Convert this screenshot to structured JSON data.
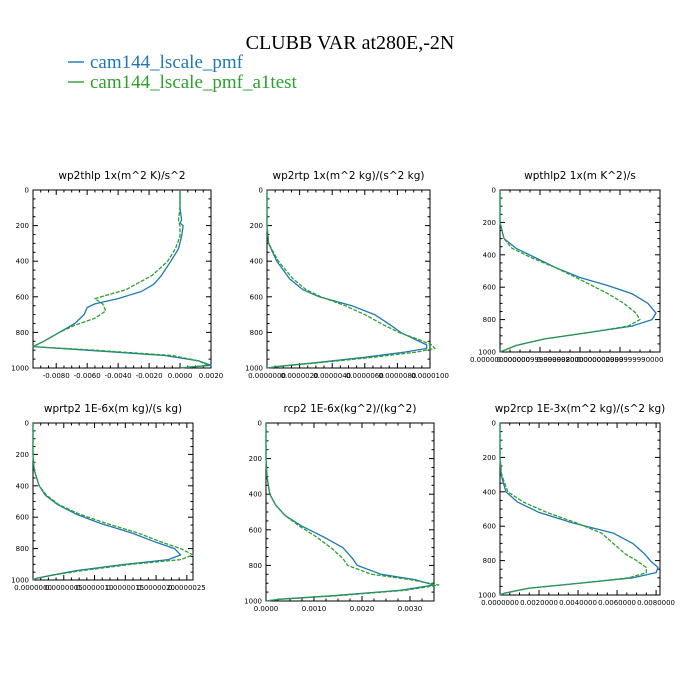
{
  "figure": {
    "title": "CLUBB VAR at280E,-2N",
    "legend": [
      {
        "label": "cam144_lscale_pmf",
        "color": "#1f77b4",
        "dashed": false
      },
      {
        "label": "cam144_lscale_pmf_a1test",
        "color": "#2ca02c",
        "dashed": true
      }
    ]
  },
  "chart_data": [
    {
      "type": "line",
      "title": "wp2thlp  1x(m^2 K)/s^2",
      "xlim": [
        -0.0095,
        0.002
      ],
      "ylim": [
        1000,
        0
      ],
      "xticks": [
        -0.008,
        -0.006,
        -0.004,
        -0.002,
        0.0,
        0.002
      ],
      "xtick_labels": [
        "-0.0080",
        "-0.0060",
        "-0.0040",
        "-0.0020",
        "0.0000",
        "0.0020"
      ],
      "yticks": [
        0,
        200,
        400,
        600,
        800,
        1000
      ],
      "ytick_labels": [
        "0",
        "200",
        "400",
        "600",
        "800",
        "1000"
      ],
      "series": [
        {
          "name": "cam144_lscale_pmf",
          "y": [
            0,
            100,
            170,
            185,
            200,
            260,
            330,
            400,
            480,
            530,
            570,
            610,
            640,
            660,
            700,
            750,
            800,
            850,
            880,
            900,
            930,
            960,
            985,
            1000
          ],
          "x": [
            0.0,
            0.0,
            0.0001,
            0.0,
            0.0002,
            0.0001,
            -0.0001,
            -0.0006,
            -0.0012,
            -0.0017,
            -0.0025,
            -0.004,
            -0.0055,
            -0.006,
            -0.0062,
            -0.0068,
            -0.0078,
            -0.0088,
            -0.0095,
            -0.006,
            -0.001,
            0.0012,
            0.002,
            0.0
          ]
        },
        {
          "name": "cam144_lscale_pmf_a1test",
          "y": [
            0,
            100,
            170,
            200,
            260,
            330,
            400,
            480,
            560,
            610,
            640,
            680,
            720,
            760,
            800,
            850,
            880,
            900,
            930,
            960,
            985,
            1000
          ],
          "x": [
            0.0,
            0.0,
            -0.0001,
            0.0,
            0.0,
            -0.0003,
            -0.0008,
            -0.0018,
            -0.0035,
            -0.0055,
            -0.005,
            -0.0048,
            -0.0055,
            -0.0068,
            -0.0078,
            -0.0088,
            -0.0095,
            -0.0055,
            -0.0005,
            0.0012,
            0.0018,
            0.0
          ]
        }
      ]
    },
    {
      "type": "line",
      "title": "wp2rtp  1x(m^2 kg)/(s^2 kg)",
      "xlim": [
        0,
        1e-05
      ],
      "ylim": [
        1000,
        0
      ],
      "xticks": [
        0,
        2e-06,
        4e-06,
        6e-06,
        8e-06,
        1e-05
      ],
      "xtick_labels": [
        "0.0000000",
        "0.0000020",
        "0.0000040",
        "0.0000060",
        "0.0000080",
        "0.0000100"
      ],
      "yticks": [
        0,
        200,
        400,
        600,
        800,
        1000
      ],
      "ytick_labels": [
        "0",
        "200",
        "400",
        "600",
        "800",
        "1000"
      ],
      "series": [
        {
          "name": "cam144_lscale_pmf",
          "y": [
            0,
            200,
            300,
            400,
            500,
            560,
            600,
            650,
            700,
            760,
            800,
            840,
            870,
            890,
            910,
            940,
            970,
            990,
            1000
          ],
          "x": [
            0.0,
            0.0,
            1e-07,
            6e-07,
            1.4e-06,
            2.2e-06,
            3.2e-06,
            5.2e-06,
            6.6e-06,
            7.6e-06,
            8.2e-06,
            9.1e-06,
            9.8e-06,
            9.8e-06,
            8.5e-06,
            6e-06,
            3e-06,
            8e-07,
            0.0
          ]
        },
        {
          "name": "cam144_lscale_pmf_a1test",
          "y": [
            0,
            200,
            300,
            400,
            500,
            560,
            600,
            650,
            700,
            760,
            800,
            840,
            870,
            890,
            910,
            940,
            970,
            990,
            1000
          ],
          "x": [
            0.0,
            0.0,
            1e-07,
            7e-07,
            1.6e-06,
            2.4e-06,
            3.3e-06,
            4.8e-06,
            6e-06,
            7.2e-06,
            8.1e-06,
            9.3e-06,
            1.01e-05,
            1.03e-05,
            9.2e-06,
            6.5e-06,
            3.2e-06,
            9e-07,
            0.0
          ]
        }
      ]
    },
    {
      "type": "line",
      "title": "wpthlp2  1x(m K^2)/s",
      "xlim": [
        0,
        4e-06
      ],
      "ylim": [
        1000,
        0
      ],
      "xticks": [
        0,
        1e-06,
        2e-06,
        3e-06
      ],
      "xtick_labels": [
        "0.000000000000",
        "0.000000999999998000",
        "0.000002000000000000",
        "0.000002999999990000"
      ],
      "yticks": [
        0,
        200,
        400,
        600,
        800,
        1000
      ],
      "ytick_labels": [
        "0",
        "200",
        "400",
        "600",
        "800",
        "1000"
      ],
      "series": [
        {
          "name": "cam144_lscale_pmf",
          "y": [
            0,
            200,
            300,
            360,
            420,
            480,
            540,
            590,
            640,
            700,
            760,
            800,
            840,
            880,
            920,
            960,
            990,
            1000
          ],
          "x": [
            0.0,
            0.0,
            1e-07,
            4e-07,
            9e-07,
            1.4e-06,
            2e-06,
            2.7e-06,
            3.3e-06,
            3.7e-06,
            3.9e-06,
            3.8e-06,
            3.3e-06,
            2.2e-06,
            1.1e-06,
            4e-07,
            1e-07,
            0.0
          ]
        },
        {
          "name": "cam144_lscale_pmf_a1test",
          "y": [
            0,
            200,
            300,
            360,
            420,
            480,
            540,
            590,
            640,
            700,
            760,
            800,
            840,
            880,
            920,
            960,
            990,
            1000
          ],
          "x": [
            0.0,
            0.0,
            1e-07,
            3e-07,
            8e-07,
            1.4e-06,
            1.9e-06,
            2.3e-06,
            2.7e-06,
            3.1e-06,
            3.4e-06,
            3.5e-06,
            3.2e-06,
            2.2e-06,
            1.1e-06,
            4e-07,
            1e-07,
            0.0
          ]
        }
      ]
    },
    {
      "type": "line",
      "title": "wprtp2  1E-6x(m kg)/(s kg)",
      "xlim": [
        0,
        2.6e-06
      ],
      "ylim": [
        1000,
        0
      ],
      "xticks": [
        0,
        5e-07,
        1e-06,
        1.5e-06,
        2e-06,
        2.5e-06
      ],
      "xtick_labels": [
        "0.0000000",
        "0.0000005",
        "0.0000010",
        "0.0000015",
        "0.0000020",
        "0.0000025"
      ],
      "yticks": [
        0,
        200,
        400,
        600,
        800,
        1000
      ],
      "ytick_labels": [
        "0",
        "200",
        "400",
        "600",
        "800",
        "1000"
      ],
      "series": [
        {
          "name": "cam144_lscale_pmf",
          "y": [
            0,
            200,
            300,
            400,
            460,
            520,
            580,
            640,
            700,
            760,
            800,
            840,
            870,
            900,
            940,
            970,
            990,
            1000
          ],
          "x": [
            0.0,
            0.0,
            2e-08,
            1e-07,
            2e-07,
            4e-07,
            7e-07,
            1.1e-06,
            1.6e-06,
            2e-06,
            2.3e-06,
            2.4e-06,
            2.2e-06,
            1.5e-06,
            7e-07,
            3e-07,
            5e-08,
            0.0
          ]
        },
        {
          "name": "cam144_lscale_pmf_a1test",
          "y": [
            0,
            200,
            300,
            400,
            460,
            520,
            580,
            640,
            700,
            760,
            800,
            840,
            870,
            900,
            940,
            970,
            990,
            1000
          ],
          "x": [
            0.0,
            0.0,
            2e-08,
            1e-07,
            2.2e-07,
            4.2e-07,
            7.5e-07,
            1.2e-06,
            1.7e-06,
            2.1e-06,
            2.4e-06,
            2.6e-06,
            2.4e-06,
            1.6e-06,
            8e-07,
            3e-07,
            5e-08,
            0.0
          ]
        }
      ]
    },
    {
      "type": "line",
      "title": "rcp2  1E-6x(kg^2)/(kg^2)",
      "xlim": [
        0,
        0.0035
      ],
      "ylim": [
        1000,
        0
      ],
      "xticks": [
        0,
        0.001,
        0.002,
        0.003
      ],
      "xtick_labels": [
        "0.0000",
        "0.0010",
        "0.0020",
        "0.0030"
      ],
      "yticks": [
        0,
        200,
        400,
        600,
        800,
        1000
      ],
      "ytick_labels": [
        "0",
        "200",
        "400",
        "600",
        "800",
        "1000"
      ],
      "series": [
        {
          "name": "cam144_lscale_pmf",
          "y": [
            0,
            200,
            300,
            400,
            460,
            520,
            580,
            640,
            700,
            760,
            800,
            850,
            880,
            910,
            940,
            970,
            990,
            1000
          ],
          "x": [
            0.0,
            0.0,
            2e-05,
            8e-05,
            0.0002,
            0.0004,
            0.00075,
            0.0012,
            0.0016,
            0.0018,
            0.0019,
            0.0024,
            0.0031,
            0.0035,
            0.0028,
            0.0014,
            0.0003,
            0.0
          ]
        },
        {
          "name": "cam144_lscale_pmf_a1test",
          "y": [
            0,
            200,
            300,
            400,
            460,
            520,
            580,
            640,
            700,
            760,
            800,
            850,
            880,
            910,
            940,
            970,
            990,
            1000
          ],
          "x": [
            0.0,
            0.0,
            2e-05,
            8e-05,
            0.0002,
            0.0004,
            0.0007,
            0.00105,
            0.00135,
            0.0016,
            0.0017,
            0.0022,
            0.003,
            0.0036,
            0.0029,
            0.0015,
            0.0003,
            0.0
          ]
        }
      ]
    },
    {
      "type": "line",
      "title": "wp2rcp  1E-3x(m^2 kg)/(s^2 kg)",
      "xlim": [
        0,
        0.0082
      ],
      "ylim": [
        1000,
        0
      ],
      "xticks": [
        0,
        0.002,
        0.004,
        0.006,
        0.008
      ],
      "xtick_labels": [
        "0.0000000",
        "0.0020000",
        "0.0040000",
        "0.0060000",
        "0.0080000"
      ],
      "yticks": [
        0,
        200,
        400,
        600,
        800,
        1000
      ],
      "ytick_labels": [
        "0",
        "200",
        "400",
        "600",
        "800",
        "1000"
      ],
      "series": [
        {
          "name": "cam144_lscale_pmf",
          "y": [
            0,
            200,
            300,
            400,
            460,
            520,
            580,
            640,
            700,
            760,
            800,
            840,
            870,
            900,
            930,
            960,
            990,
            1000
          ],
          "x": [
            0.0,
            0.0,
            5e-05,
            0.0003,
            0.0009,
            0.002,
            0.0037,
            0.0058,
            0.0068,
            0.0074,
            0.0077,
            0.0081,
            0.008,
            0.0068,
            0.0042,
            0.0015,
            0.0002,
            0.0
          ]
        },
        {
          "name": "cam144_lscale_pmf_a1test",
          "y": [
            0,
            200,
            300,
            400,
            460,
            520,
            580,
            640,
            700,
            760,
            800,
            840,
            870,
            900,
            930,
            960,
            990,
            1000
          ],
          "x": [
            0.0,
            0.0,
            8e-05,
            0.0004,
            0.0012,
            0.0024,
            0.0039,
            0.0052,
            0.0058,
            0.0064,
            0.007,
            0.0075,
            0.0075,
            0.0066,
            0.0042,
            0.0015,
            0.0002,
            0.0
          ]
        }
      ]
    }
  ]
}
